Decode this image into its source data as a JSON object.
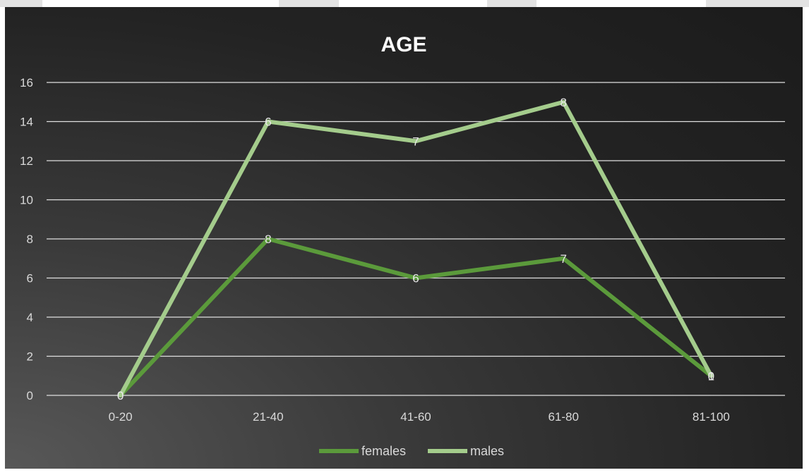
{
  "chart_data": {
    "type": "line",
    "title": "AGE",
    "xlabel": "",
    "ylabel": "",
    "categories": [
      "0-20",
      "21-40",
      "41-60",
      "61-80",
      "81-100"
    ],
    "ylim": [
      0,
      16
    ],
    "yticks": [
      0,
      2,
      4,
      6,
      8,
      10,
      12,
      14,
      16
    ],
    "grid": true,
    "legend_position": "bottom",
    "series": [
      {
        "name": "females",
        "values": [
          0,
          8,
          6,
          7,
          1
        ],
        "data_labels": [
          "0",
          "8",
          "6",
          "7",
          "1"
        ],
        "color": "#5b9a3b"
      },
      {
        "name": "males",
        "values": [
          0,
          14,
          13,
          15,
          1
        ],
        "data_labels": [
          "0",
          "6",
          "7",
          "8",
          "0"
        ],
        "color": "#a4cc8c"
      }
    ],
    "colors": {
      "background": "#262626",
      "gridline": "#e0e0e0",
      "text": "#d9d9d9"
    }
  }
}
